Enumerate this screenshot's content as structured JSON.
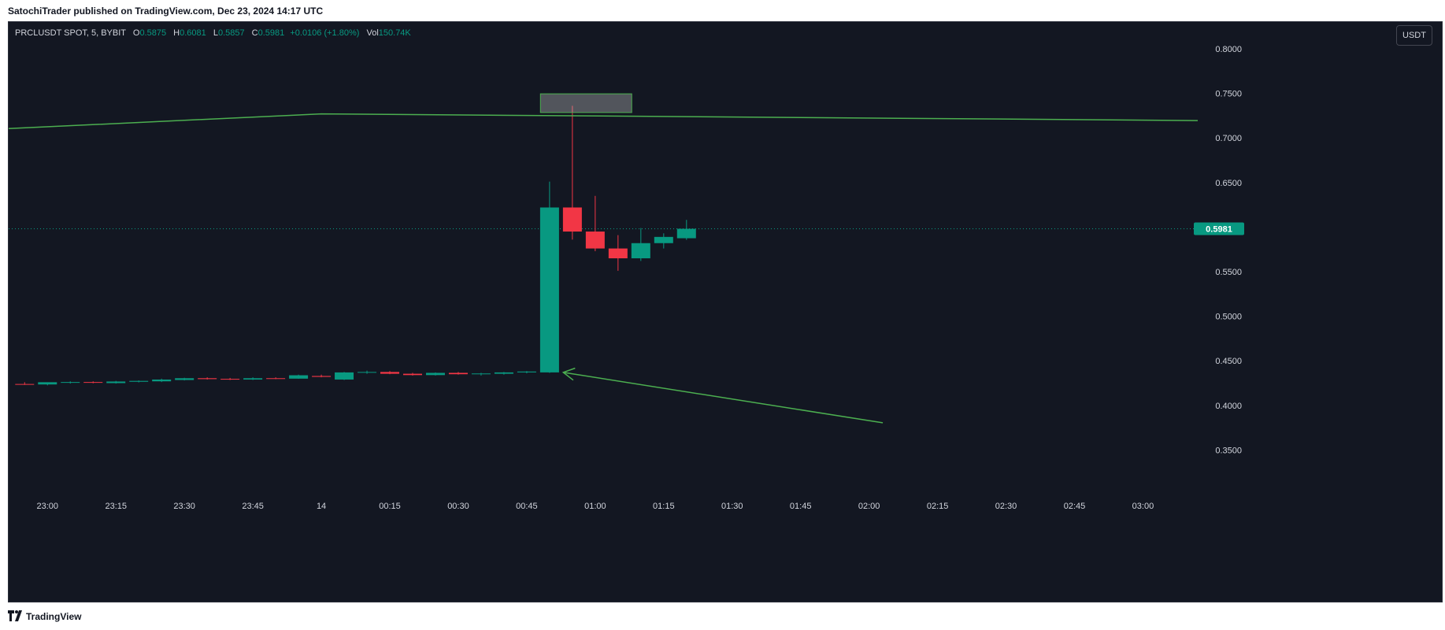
{
  "header": {
    "publisher": "SatochiTrader published on TradingView.com, Dec 23, 2024 14:17 UTC"
  },
  "legend": {
    "symbol": "PRCLUSDT SPOT, 5, BYBIT",
    "o_label": "O",
    "o_value": "0.5875",
    "h_label": "H",
    "h_value": "0.6081",
    "l_label": "L",
    "l_value": "0.5857",
    "c_label": "C",
    "c_value": "0.5981",
    "change": "+0.0106 (+1.80%)",
    "vol_label": "Vol",
    "vol_value": "150.74K"
  },
  "currency_button": "USDT",
  "footer": {
    "brand": "TradingView"
  },
  "colors": {
    "background": "#131722",
    "up": "#089981",
    "down": "#f23645",
    "drawing": "#4caf50",
    "axis_text": "#d1d4dc"
  },
  "chart_data": {
    "type": "candlestick",
    "y_ticks": [
      "0.8000",
      "0.7500",
      "0.7000",
      "0.6500",
      "0.5500",
      "0.5000",
      "0.4500",
      "0.4000",
      "0.3500"
    ],
    "ylim": [
      0.3,
      0.83
    ],
    "x_ticks": [
      {
        "label": "23:00",
        "t": 0
      },
      {
        "label": "23:15",
        "t": 15
      },
      {
        "label": "23:30",
        "t": 30
      },
      {
        "label": "23:45",
        "t": 45
      },
      {
        "label": "14",
        "t": 60
      },
      {
        "label": "00:15",
        "t": 75
      },
      {
        "label": "00:30",
        "t": 90
      },
      {
        "label": "00:45",
        "t": 105
      },
      {
        "label": "01:00",
        "t": 120
      },
      {
        "label": "01:15",
        "t": 135
      },
      {
        "label": "01:30",
        "t": 150
      },
      {
        "label": "01:45",
        "t": 165
      },
      {
        "label": "02:00",
        "t": 180
      },
      {
        "label": "02:15",
        "t": 195
      },
      {
        "label": "02:30",
        "t": 210
      },
      {
        "label": "02:45",
        "t": 225
      },
      {
        "label": "03:00",
        "t": 240
      }
    ],
    "xlim": [
      -8.5,
      252
    ],
    "last_price": "0.5981",
    "candles": [
      {
        "t": -5,
        "o": 0.424,
        "h": 0.426,
        "l": 0.423,
        "c": 0.4235
      },
      {
        "t": 0,
        "o": 0.4235,
        "h": 0.4255,
        "l": 0.4225,
        "c": 0.426
      },
      {
        "t": 5,
        "o": 0.4255,
        "h": 0.427,
        "l": 0.4245,
        "c": 0.4262
      },
      {
        "t": 10,
        "o": 0.4262,
        "h": 0.427,
        "l": 0.4248,
        "c": 0.4255
      },
      {
        "t": 15,
        "o": 0.425,
        "h": 0.4275,
        "l": 0.4245,
        "c": 0.4268
      },
      {
        "t": 20,
        "o": 0.4265,
        "h": 0.428,
        "l": 0.4258,
        "c": 0.4275
      },
      {
        "t": 25,
        "o": 0.427,
        "h": 0.43,
        "l": 0.4262,
        "c": 0.429
      },
      {
        "t": 30,
        "o": 0.4285,
        "h": 0.431,
        "l": 0.428,
        "c": 0.4305
      },
      {
        "t": 35,
        "o": 0.4305,
        "h": 0.4315,
        "l": 0.429,
        "c": 0.4295
      },
      {
        "t": 40,
        "o": 0.4298,
        "h": 0.4308,
        "l": 0.4285,
        "c": 0.429
      },
      {
        "t": 45,
        "o": 0.429,
        "h": 0.4315,
        "l": 0.4285,
        "c": 0.4305
      },
      {
        "t": 50,
        "o": 0.4305,
        "h": 0.4315,
        "l": 0.4295,
        "c": 0.43
      },
      {
        "t": 55,
        "o": 0.43,
        "h": 0.4345,
        "l": 0.4298,
        "c": 0.4338
      },
      {
        "t": 60,
        "o": 0.433,
        "h": 0.4345,
        "l": 0.4315,
        "c": 0.432
      },
      {
        "t": 65,
        "o": 0.429,
        "h": 0.4375,
        "l": 0.4285,
        "c": 0.437
      },
      {
        "t": 70,
        "o": 0.437,
        "h": 0.439,
        "l": 0.4355,
        "c": 0.4375
      },
      {
        "t": 75,
        "o": 0.4375,
        "h": 0.4385,
        "l": 0.435,
        "c": 0.4355
      },
      {
        "t": 80,
        "o": 0.4355,
        "h": 0.4365,
        "l": 0.4335,
        "c": 0.434
      },
      {
        "t": 85,
        "o": 0.434,
        "h": 0.437,
        "l": 0.4335,
        "c": 0.4365
      },
      {
        "t": 90,
        "o": 0.4365,
        "h": 0.4375,
        "l": 0.4345,
        "c": 0.435
      },
      {
        "t": 95,
        "o": 0.435,
        "h": 0.4365,
        "l": 0.4335,
        "c": 0.4358
      },
      {
        "t": 100,
        "o": 0.4355,
        "h": 0.4375,
        "l": 0.4345,
        "c": 0.437
      },
      {
        "t": 105,
        "o": 0.437,
        "h": 0.4385,
        "l": 0.436,
        "c": 0.438
      },
      {
        "t": 110,
        "o": 0.437,
        "h": 0.651,
        "l": 0.4365,
        "c": 0.622
      },
      {
        "t": 115,
        "o": 0.622,
        "h": 0.736,
        "l": 0.586,
        "c": 0.595
      },
      {
        "t": 120,
        "o": 0.595,
        "h": 0.635,
        "l": 0.573,
        "c": 0.576
      },
      {
        "t": 125,
        "o": 0.576,
        "h": 0.591,
        "l": 0.551,
        "c": 0.565
      },
      {
        "t": 130,
        "o": 0.565,
        "h": 0.599,
        "l": 0.562,
        "c": 0.582
      },
      {
        "t": 135,
        "o": 0.582,
        "h": 0.593,
        "l": 0.576,
        "c": 0.589
      },
      {
        "t": 140,
        "o": 0.5875,
        "h": 0.6081,
        "l": 0.5857,
        "c": 0.5981
      }
    ],
    "annotations": [
      {
        "type": "trend_line",
        "points": [
          {
            "t": -8.5,
            "y": 0.7105
          },
          {
            "t": 60,
            "y": 0.727
          },
          {
            "t": 252,
            "y": 0.7195
          }
        ]
      },
      {
        "type": "rectangle",
        "t1": 108,
        "t2": 128,
        "y1": 0.7495,
        "y2": 0.7285
      },
      {
        "type": "arrow",
        "from": {
          "t": 183,
          "y": 0.3805
        },
        "to": {
          "t": 113,
          "y": 0.437
        }
      }
    ]
  }
}
